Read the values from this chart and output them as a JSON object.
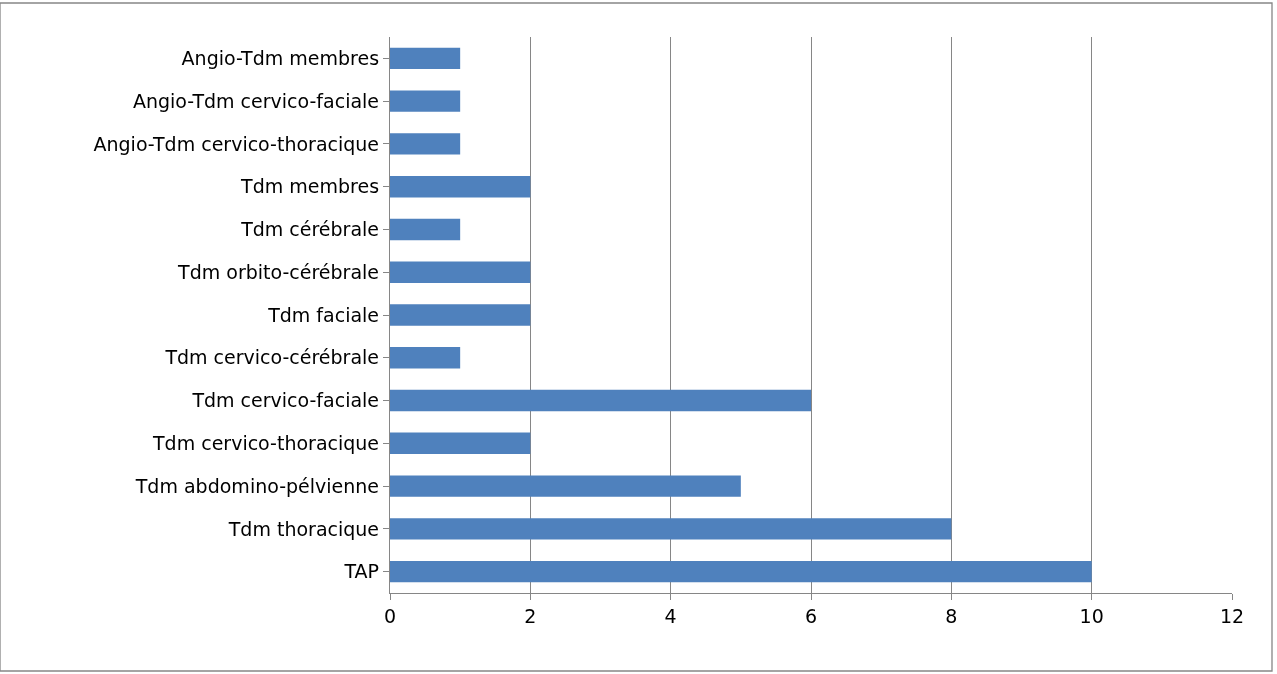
{
  "chart_data": {
    "type": "bar",
    "orientation": "horizontal",
    "categories": [
      "Angio-Tdm membres",
      "Angio-Tdm cervico-faciale",
      "Angio-Tdm cervico-thoracique",
      "Tdm membres",
      "Tdm cérébrale",
      "Tdm orbito-cérébrale",
      "Tdm faciale",
      "Tdm cervico-cérébrale",
      "Tdm cervico-faciale",
      "Tdm cervico-thoracique",
      "Tdm abdomino-pélvienne",
      "Tdm thoracique",
      "TAP"
    ],
    "values": [
      1,
      1,
      1,
      2,
      1,
      2,
      2,
      1,
      6,
      2,
      5,
      8,
      10
    ],
    "color": "#4f81bd",
    "xlim": [
      0,
      12
    ],
    "xticks": [
      0,
      2,
      4,
      6,
      8,
      10,
      12
    ],
    "grid": "x"
  }
}
